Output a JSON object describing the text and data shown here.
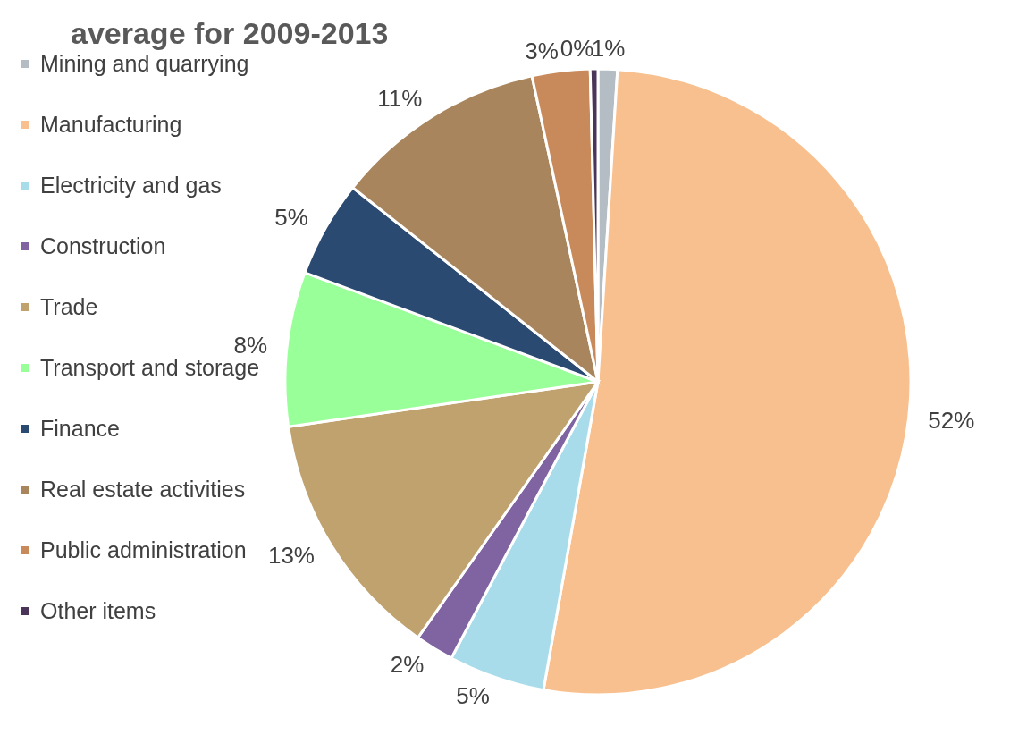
{
  "chart_data": {
    "type": "pie",
    "title": "average for 2009-2013",
    "categories": [
      "Mining and quarrying",
      "Manufacturing",
      "Electricity and gas",
      "Construction",
      "Trade",
      "Transport and storage",
      "Finance",
      "Real estate activities",
      "Public administration",
      "Other items"
    ],
    "values": [
      1,
      52,
      5,
      2,
      13,
      8,
      5,
      11,
      3,
      0.4
    ],
    "value_labels": [
      "1%",
      "52%",
      "5%",
      "2%",
      "13%",
      "8%",
      "5%",
      "11%",
      "3%",
      "0%"
    ],
    "colors": [
      "#b4bcc4",
      "#f9c08f",
      "#a8dcea",
      "#8064a2",
      "#bfa26e",
      "#99ff99",
      "#2b4a72",
      "#a9855d",
      "#c88a5a",
      "#4a3458"
    ],
    "legend": "left"
  }
}
